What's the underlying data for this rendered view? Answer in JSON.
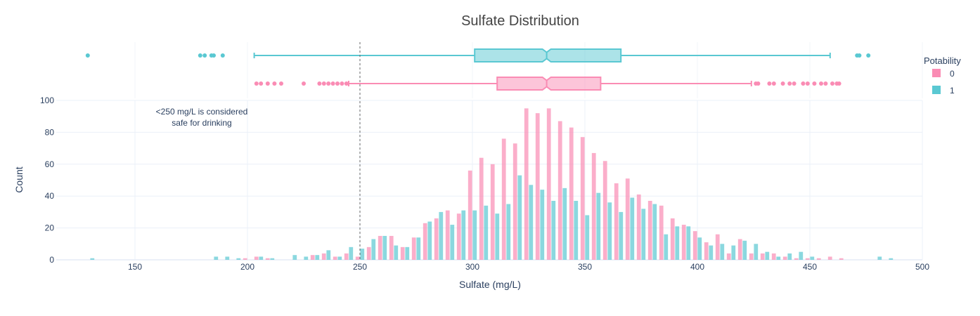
{
  "chart_data": {
    "type": "histogram",
    "title": "Sulfate Distribution",
    "xlabel": "Sulfate (mg/L)",
    "ylabel": "Count",
    "xlim": [
      115,
      500
    ],
    "ylim": [
      0,
      100
    ],
    "x_ticks": [
      150,
      200,
      250,
      300,
      350,
      400,
      450,
      500
    ],
    "y_ticks": [
      0,
      20,
      40,
      60,
      80,
      100
    ],
    "bin_width": 5,
    "bin_centers": [
      130,
      145,
      150,
      155,
      160,
      165,
      170,
      175,
      180,
      185,
      190,
      195,
      200,
      205,
      210,
      215,
      220,
      225,
      230,
      235,
      240,
      245,
      250,
      255,
      260,
      265,
      270,
      275,
      280,
      285,
      290,
      295,
      300,
      305,
      310,
      315,
      320,
      325,
      330,
      335,
      340,
      345,
      350,
      355,
      360,
      365,
      370,
      375,
      380,
      385,
      390,
      395,
      400,
      405,
      410,
      415,
      420,
      425,
      430,
      435,
      440,
      445,
      450,
      455,
      460,
      465,
      470,
      475,
      480,
      485
    ],
    "legend": {
      "title": "Potability",
      "position": "top-right"
    },
    "reference_line": {
      "x": 250,
      "style": "dotted"
    },
    "annotation": {
      "x": 185,
      "y": 92,
      "lines": [
        "<250 mg/L is considered",
        "safe for drinking"
      ]
    },
    "series": [
      {
        "name": "0",
        "color": "#fa8cb4",
        "values": [
          0,
          0,
          0,
          0,
          0,
          0,
          0,
          0,
          0,
          0,
          0,
          0,
          1,
          2,
          1,
          0,
          0,
          0,
          3,
          4,
          2,
          4,
          2,
          8,
          15,
          15,
          8,
          14,
          23,
          26,
          31,
          29,
          56,
          64,
          60,
          76,
          73,
          95,
          92,
          95,
          87,
          83,
          77,
          67,
          62,
          48,
          51,
          41,
          37,
          34,
          26,
          22,
          18,
          11,
          16,
          4,
          13,
          4,
          4,
          4,
          2,
          1,
          1,
          1,
          2,
          1,
          0,
          0,
          0,
          0
        ],
        "box": {
          "min": 245,
          "q1": 311,
          "median": 333,
          "q3": 357,
          "max": 424,
          "outliers": [
            204,
            206,
            209,
            212,
            215,
            225,
            232,
            234,
            236,
            238,
            240,
            242,
            244,
            426,
            427,
            432,
            434,
            438,
            441,
            443,
            447,
            449,
            452,
            455,
            457,
            460,
            462,
            463
          ]
        }
      },
      {
        "name": "1",
        "color": "#5ac8d2",
        "values": [
          1,
          0,
          0,
          0,
          0,
          0,
          0,
          0,
          0,
          2,
          2,
          1,
          0,
          2,
          1,
          0,
          3,
          2,
          3,
          6,
          2,
          8,
          7,
          13,
          15,
          9,
          8,
          14,
          24,
          30,
          22,
          31,
          31,
          34,
          29,
          35,
          53,
          47,
          44,
          37,
          45,
          37,
          28,
          42,
          36,
          30,
          39,
          32,
          35,
          16,
          21,
          21,
          14,
          9,
          10,
          9,
          12,
          10,
          5,
          2,
          4,
          5,
          2,
          0,
          0,
          0,
          0,
          0,
          2,
          1
        ],
        "box": {
          "min": 203,
          "q1": 301,
          "median": 333,
          "q3": 366,
          "max": 459,
          "outliers": [
            129,
            179,
            181,
            184,
            185,
            189,
            471,
            472,
            476
          ]
        }
      }
    ]
  }
}
